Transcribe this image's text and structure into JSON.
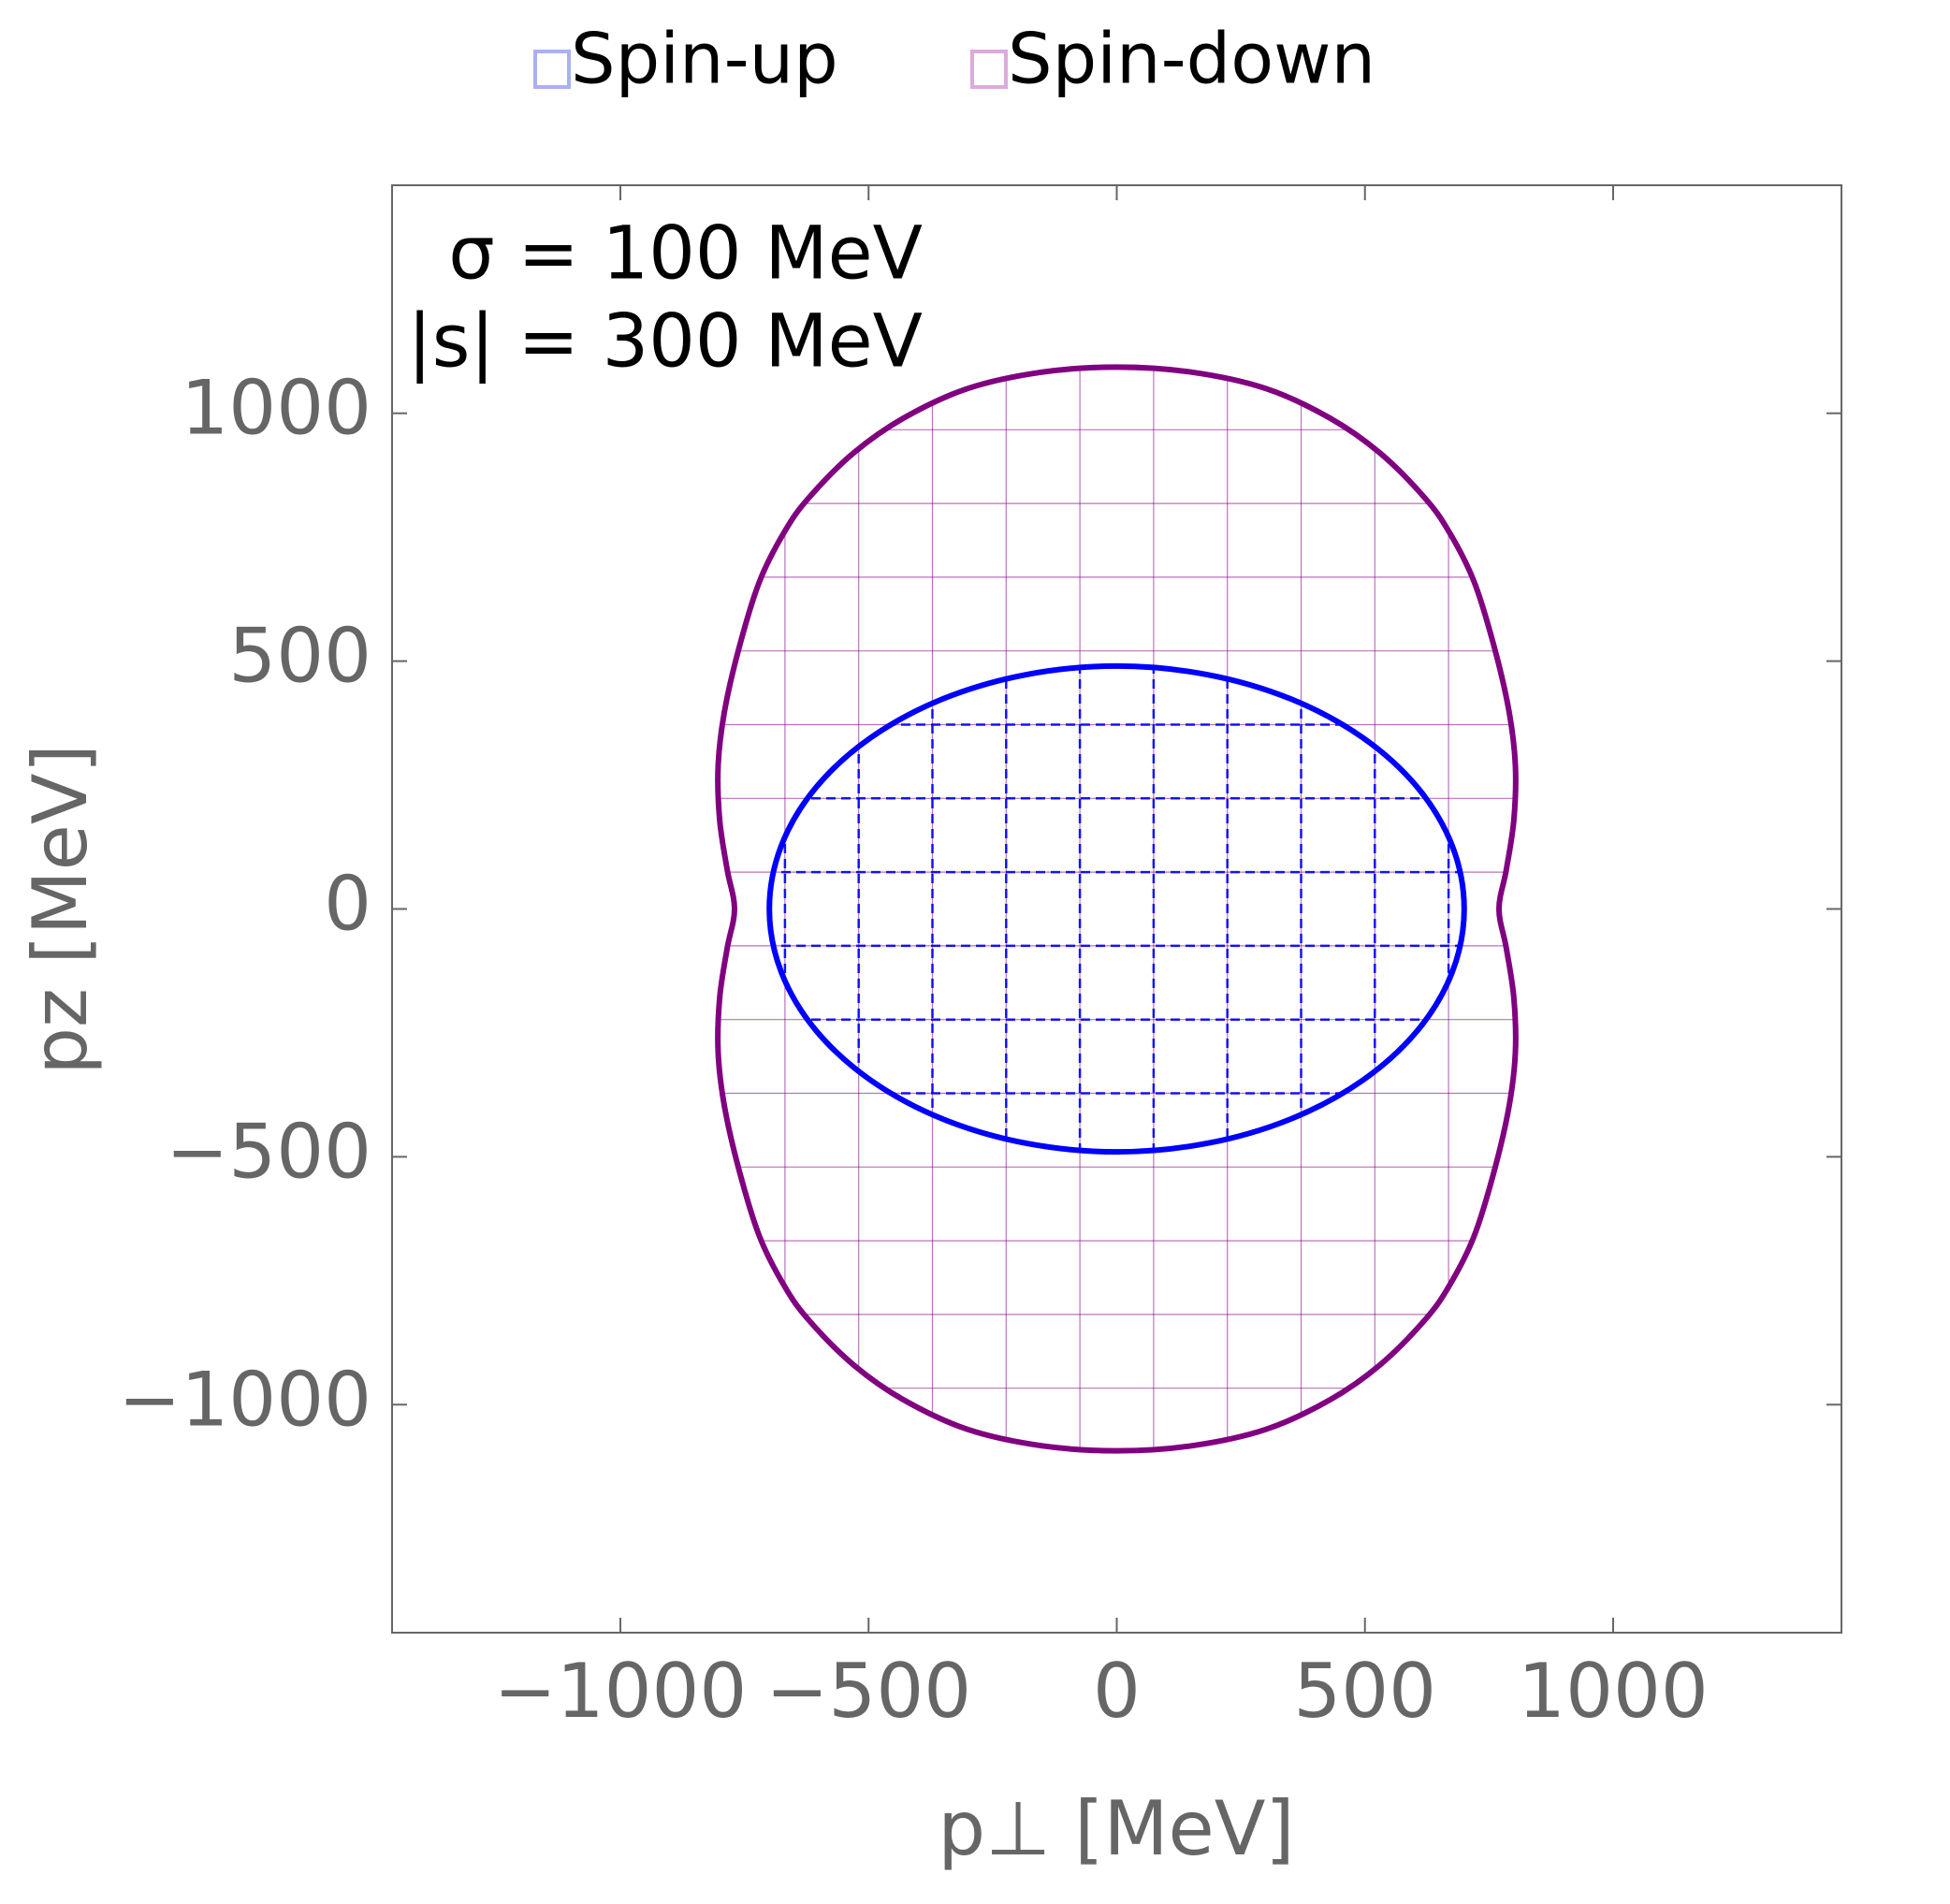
{
  "chart_data": {
    "type": "region",
    "xlabel": "p⊥  [MeV]",
    "ylabel": "pz  [MeV]",
    "annotations": [
      "σ = 100 MeV",
      "|s| = 300 MeV"
    ],
    "xlim": [
      -1460,
      1460
    ],
    "ylim": [
      -1460,
      1460
    ],
    "xticks": [
      {
        "value": -1000,
        "label": "−1000"
      },
      {
        "value": -500,
        "label": "−500"
      },
      0,
      500,
      1000
    ],
    "yticks": [
      {
        "value": -1000,
        "label": "−1000"
      },
      {
        "value": -500,
        "label": "−500"
      },
      0,
      500,
      1000
    ],
    "series": [
      {
        "name": "Spin-up",
        "color": "#0000ff",
        "legend_color": "#aab0f0",
        "mesh": "dashed",
        "x": [
          700,
          676,
          606,
          495,
          350,
          181,
          0,
          -181,
          -350,
          -495,
          -606,
          -676,
          -700,
          -676,
          -606,
          -495,
          -350,
          -181,
          0,
          181,
          350,
          495,
          606,
          676
        ],
        "y": [
          0,
          127,
          245,
          346,
          424,
          473,
          490,
          473,
          424,
          346,
          245,
          127,
          0,
          -127,
          -245,
          -346,
          -424,
          -473,
          -490,
          -473,
          -424,
          -346,
          -245,
          -127
        ]
      },
      {
        "name": "Spin-down",
        "color": "#800080",
        "legend_color": "#dcaadc",
        "mesh": "solid",
        "x": [
          770,
          785,
          800,
          803,
          790,
          760,
          720,
          670,
          620,
          530,
          430,
          300,
          150,
          0,
          -150,
          -300,
          -430,
          -530,
          -620,
          -670,
          -720,
          -760,
          -790,
          -803,
          -800,
          -785,
          -770,
          -785,
          -800,
          -803,
          -790,
          -760,
          -720,
          -670,
          -620,
          -530,
          -430,
          -300,
          -150,
          0,
          150,
          300,
          430,
          530,
          620,
          670,
          720,
          760,
          790,
          803,
          800,
          785
        ],
        "y": [
          0,
          80,
          180,
          290,
          400,
          530,
          660,
          760,
          830,
          920,
          990,
          1050,
          1083,
          1093,
          1083,
          1050,
          990,
          920,
          830,
          760,
          660,
          530,
          400,
          290,
          180,
          80,
          0,
          -80,
          -180,
          -290,
          -400,
          -530,
          -660,
          -760,
          -830,
          -920,
          -990,
          -1050,
          -1083,
          -1093,
          -1083,
          -1050,
          -990,
          -920,
          -830,
          -760,
          -660,
          -530,
          -400,
          -290,
          -180,
          -80
        ]
      }
    ]
  }
}
